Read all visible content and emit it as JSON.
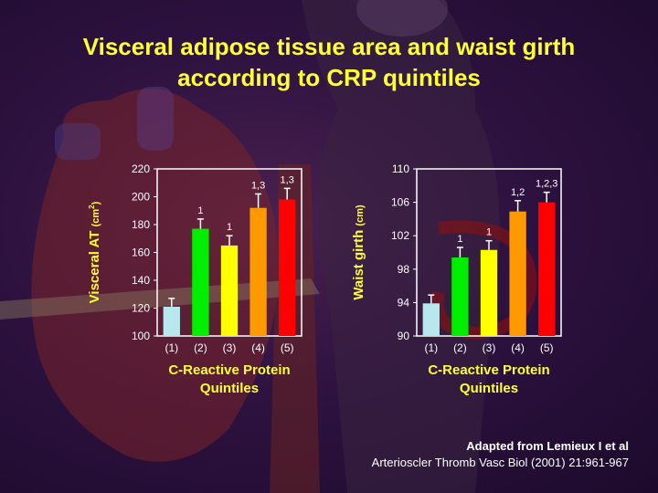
{
  "title": {
    "line1": "Visceral adipose tissue area and waist girth",
    "line2": "according to CRP quintiles"
  },
  "colors": {
    "title": "#ffff33",
    "axis_text": "#ffffff",
    "xlabel": "#ffff33",
    "ylabel": "#ffff33",
    "bars": [
      "#b8e8ee",
      "#00ee00",
      "#ffff00",
      "#ff9900",
      "#ff0000"
    ]
  },
  "chart_data": [
    {
      "type": "bar",
      "categories": [
        "(1)",
        "(2)",
        "(3)",
        "(4)",
        "(5)"
      ],
      "values": [
        121,
        177,
        165,
        192,
        198
      ],
      "errors": [
        6,
        7,
        7,
        10,
        8
      ],
      "labels": [
        "",
        "1",
        "1",
        "1,3",
        "1,3"
      ],
      "ylim": [
        100,
        220
      ],
      "yticks": [
        100,
        120,
        140,
        160,
        180,
        200,
        220
      ],
      "ylabel": "Visceral AT",
      "ylabel_unit_base": "(cm",
      "ylabel_unit_sup": "2",
      "ylabel_unit_close": ")",
      "xlabel_line1": "C-Reactive Protein",
      "xlabel_line2": "Quintiles"
    },
    {
      "type": "bar",
      "categories": [
        "(1)",
        "(2)",
        "(3)",
        "(4)",
        "(5)"
      ],
      "values": [
        93.9,
        99.4,
        100.3,
        104.9,
        106
      ],
      "errors": [
        1,
        1.2,
        1.1,
        1.3,
        1.2
      ],
      "labels": [
        "",
        "1",
        "1",
        "1,2",
        "1,2,3"
      ],
      "ylim": [
        90,
        110
      ],
      "yticks": [
        90,
        94,
        98,
        102,
        106,
        110
      ],
      "ylabel": "Waist girth",
      "ylabel_unit_base": "(cm)",
      "ylabel_unit_sup": "",
      "ylabel_unit_close": "",
      "xlabel_line1": "C-Reactive Protein",
      "xlabel_line2": "Quintiles"
    }
  ],
  "credit": {
    "line1": "Adapted from Lemieux I et al",
    "line2": "Arterioscler Thromb Vasc Biol (2001) 21:961-967"
  }
}
